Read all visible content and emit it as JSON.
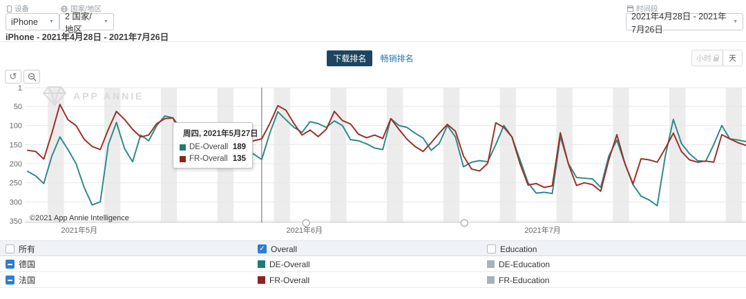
{
  "header": {
    "device": {
      "label": "设备",
      "value": "iPhone"
    },
    "country": {
      "label": "国家/地区",
      "value": "2 国家/地区"
    },
    "period": {
      "label": "时间段",
      "value": "2021年4月28日 - 2021年7月26日"
    },
    "subtitle": "iPhone - 2021年4月28日 - 2021年7月26日"
  },
  "tabs": {
    "download": "下载排名",
    "grossing": "畅销排名"
  },
  "granularity": {
    "hour": "小时",
    "day": "天"
  },
  "toolbar": {
    "reset": "↺"
  },
  "watermark": "APP ANNIE",
  "copyright": "©2021 App Annie Intelligence",
  "tooltip": {
    "title": "周四, 2021年5月27日",
    "rows": [
      {
        "label": "DE-Overall",
        "value": "189",
        "color": "#1f7b76"
      },
      {
        "label": "FR-Overall",
        "value": "135",
        "color": "#8e241e"
      }
    ]
  },
  "legend": {
    "header": {
      "all": "所有",
      "overall": "Overall",
      "education": "Education"
    },
    "rows": [
      {
        "country": "德国",
        "overall": "DE-Overall",
        "education": "DE-Education",
        "overall_color": "#1f7b76",
        "education_color": "#aab0b8"
      },
      {
        "country": "法国",
        "overall": "FR-Overall",
        "education": "FR-Education",
        "overall_color": "#8e241e",
        "education_color": "#aab0b8"
      }
    ]
  },
  "chart_data": {
    "type": "line",
    "title": "下载排名",
    "x_start_date": "2021-04-28",
    "x_end_date": "2021-07-26",
    "y_axis": {
      "inverted": true,
      "ticks": [
        1,
        50,
        100,
        150,
        200,
        250,
        300,
        350
      ]
    },
    "x_ticks": [
      {
        "label": "2021年5月",
        "day": 6.4
      },
      {
        "label": "2021年6月",
        "day": 34.3
      },
      {
        "label": "2021年7月",
        "day": 63.8
      }
    ],
    "weekend_band_start_days": [
      3,
      10,
      17,
      24,
      31,
      38,
      45,
      52,
      59,
      66,
      73,
      80,
      87
    ],
    "crosshair_day": 29,
    "slider_handle_days": [
      34.5,
      54.1
    ],
    "grid_color": "#e7e7e7",
    "band_color": "#ececec",
    "series": [
      {
        "name": "DE-Overall",
        "color": "#2d8a8b",
        "values": [
          220,
          232,
          252,
          180,
          130,
          163,
          200,
          262,
          308,
          300,
          150,
          92,
          160,
          195,
          125,
          140,
          100,
          75,
          80,
          130,
          160,
          185,
          170,
          150,
          110,
          95,
          130,
          160,
          175,
          189,
          120,
          64,
          85,
          105,
          118,
          90,
          95,
          105,
          88,
          100,
          137,
          140,
          148,
          159,
          163,
          82,
          100,
          105,
          120,
          133,
          165,
          147,
          100,
          130,
          208,
          196,
          192,
          195,
          150,
          100,
          130,
          190,
          250,
          277,
          275,
          278,
          129,
          200,
          236,
          238,
          240,
          262,
          180,
          138,
          200,
          255,
          285,
          295,
          310,
          180,
          84,
          147,
          174,
          192,
          194,
          150,
          100,
          135,
          138,
          142
        ]
      },
      {
        "name": "FR-Overall",
        "color": "#9c3029",
        "values": [
          165,
          168,
          188,
          120,
          45,
          85,
          100,
          136,
          155,
          163,
          110,
          63,
          84,
          110,
          130,
          125,
          95,
          82,
          80,
          110,
          135,
          160,
          150,
          140,
          110,
          100,
          125,
          145,
          140,
          135,
          95,
          48,
          60,
          95,
          125,
          112,
          129,
          110,
          63,
          87,
          96,
          123,
          132,
          125,
          134,
          82,
          110,
          136,
          155,
          168,
          145,
          120,
          97,
          115,
          180,
          214,
          219,
          199,
          93,
          105,
          130,
          200,
          256,
          252,
          262,
          258,
          119,
          201,
          257,
          250,
          255,
          272,
          190,
          124,
          200,
          253,
          187,
          190,
          196,
          160,
          120,
          168,
          190,
          196,
          193,
          196,
          124,
          135,
          145,
          152
        ]
      }
    ]
  }
}
